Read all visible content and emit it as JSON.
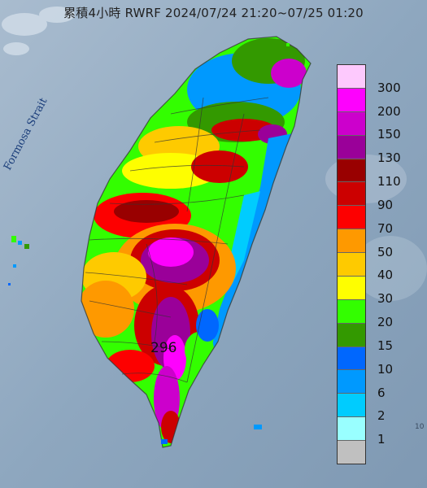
{
  "title": "累積4小時 RWRF 2024/07/24 21:20~07/25 01:20",
  "strait_label": "Formosa Strait",
  "max_value": "296",
  "edge_label": "10",
  "legend": {
    "labels": [
      "300",
      "200",
      "150",
      "130",
      "110",
      "90",
      "70",
      "50",
      "40",
      "30",
      "20",
      "15",
      "10",
      "6",
      "2",
      "1"
    ],
    "colors": [
      "#fdc9fd",
      "#fd02fd",
      "#cc00cc",
      "#9a0099",
      "#990000",
      "#cc0000",
      "#fd0000",
      "#fe9900",
      "#feca00",
      "#fefe00",
      "#33fe00",
      "#339900",
      "#0067fe",
      "#0099fe",
      "#00ccfe",
      "#99ffff",
      "#c0c0c0"
    ]
  }
}
